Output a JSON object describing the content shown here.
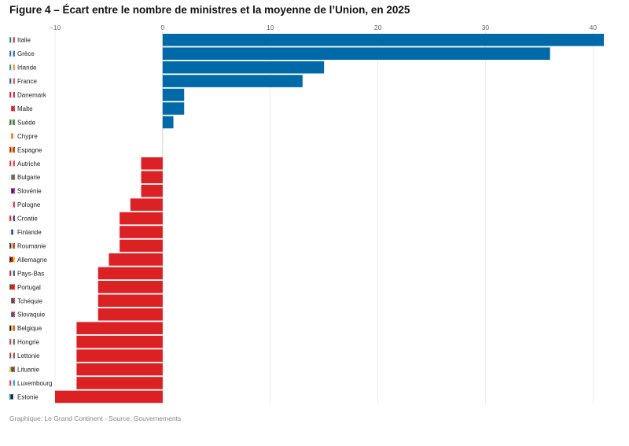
{
  "header": {
    "title": "Figure 4 – Écart entre le nombre de ministres et la moyenne de l’Union, en 2025"
  },
  "footer": {
    "source": "Graphique: Le Grand Continent - Source: Gouvernements"
  },
  "colors": {
    "positive": "#0069A8",
    "negative": "#DC2124",
    "zero_line": "#cfcfcf",
    "grid": "#ececec"
  },
  "chart_data": {
    "type": "bar",
    "orientation": "horizontal",
    "title": "Figure 4 – Écart entre le nombre de ministres et la moyenne de l’Union, en 2025",
    "xlabel": "",
    "ylabel": "",
    "xlim": [
      -10,
      41
    ],
    "xticks": [
      -10,
      0,
      10,
      20,
      30,
      40
    ],
    "xtick_labels": [
      "−10",
      "0",
      "10",
      "20",
      "30",
      "40"
    ],
    "legend": "none",
    "categories": [
      "Italie",
      "Grèce",
      "Irlande",
      "France",
      "Danemark",
      "Malte",
      "Suède",
      "Chypre",
      "Espagne",
      "Autriche",
      "Bulgarie",
      "Slovénie",
      "Pologne",
      "Croatie",
      "Finlande",
      "Roumanie",
      "Allemagne",
      "Pays-Bas",
      "Portugal",
      "Tchéquie",
      "Slovaquie",
      "Belgique",
      "Hongrie",
      "Lettonie",
      "Lituanie",
      "Luxembourg",
      "Estonie"
    ],
    "values": [
      41,
      36,
      15,
      13,
      2,
      2,
      1,
      0,
      0,
      -2,
      -2,
      -2,
      -3,
      -4,
      -4,
      -4,
      -5,
      -6,
      -6,
      -6,
      -6,
      -8,
      -8,
      -8,
      -8,
      -8,
      -10
    ],
    "flags": [
      [
        "#009246",
        "#ffffff",
        "#ce2b37"
      ],
      [
        "#0d5eaf",
        "#ffffff",
        "#0d5eaf"
      ],
      [
        "#169b62",
        "#ffffff",
        "#ff883e"
      ],
      [
        "#0055a4",
        "#ffffff",
        "#ef4135"
      ],
      [
        "#c8102e",
        "#ffffff",
        "#c8102e"
      ],
      [
        "#ffffff",
        "#cf142b",
        "#cf142b"
      ],
      [
        "#006aa7",
        "#fecc00",
        "#006aa7"
      ],
      [
        "#ffffff",
        "#d57800",
        "#ffffff"
      ],
      [
        "#aa151b",
        "#f1bf00",
        "#aa151b"
      ],
      [
        "#ed2939",
        "#ffffff",
        "#ed2939"
      ],
      [
        "#ffffff",
        "#00966e",
        "#d62612"
      ],
      [
        "#ffffff",
        "#0000ff",
        "#ff0000"
      ],
      [
        "#ffffff",
        "#ffffff",
        "#dc143c"
      ],
      [
        "#ff0000",
        "#ffffff",
        "#171796"
      ],
      [
        "#ffffff",
        "#003580",
        "#ffffff"
      ],
      [
        "#002b7f",
        "#fcd116",
        "#ce1126"
      ],
      [
        "#000000",
        "#dd0000",
        "#ffce00"
      ],
      [
        "#ae1c28",
        "#ffffff",
        "#21468b"
      ],
      [
        "#006600",
        "#ff0000",
        "#ff0000"
      ],
      [
        "#ffffff",
        "#11457e",
        "#d7141a"
      ],
      [
        "#ffffff",
        "#0b4ea2",
        "#ee1c25"
      ],
      [
        "#000000",
        "#fdda24",
        "#ef3340"
      ],
      [
        "#cd2a3e",
        "#ffffff",
        "#436f4d"
      ],
      [
        "#9e3039",
        "#ffffff",
        "#9e3039"
      ],
      [
        "#fdb913",
        "#006a44",
        "#c1272d"
      ],
      [
        "#ed2939",
        "#ffffff",
        "#00a1de"
      ],
      [
        "#0072ce",
        "#000000",
        "#ffffff"
      ]
    ]
  }
}
